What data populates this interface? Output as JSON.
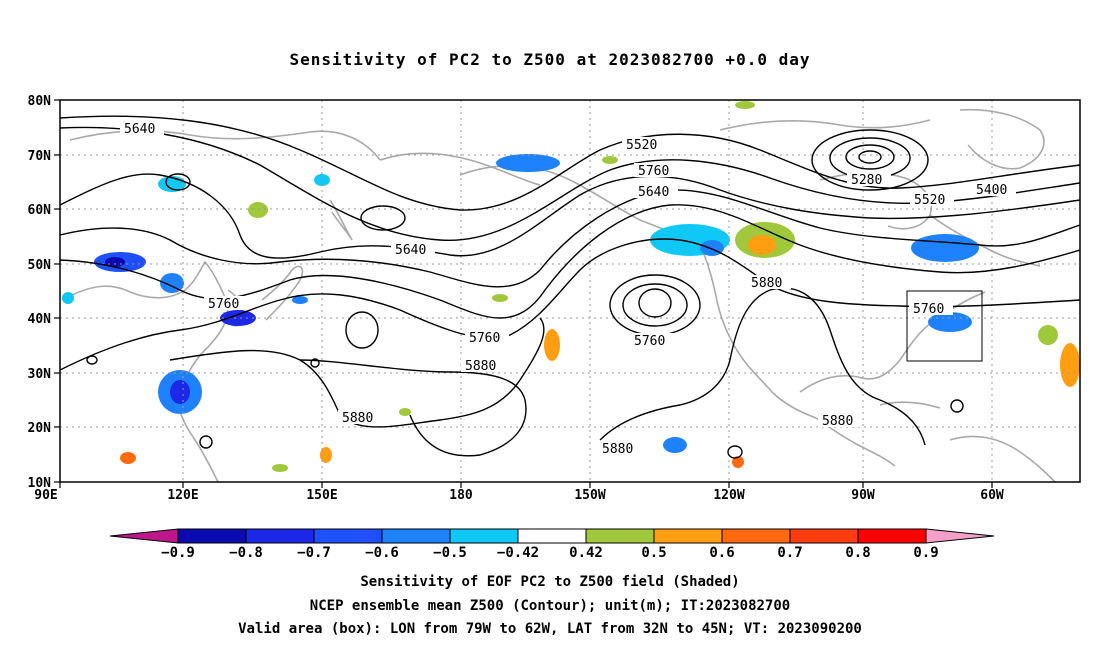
{
  "title": "Sensitivity of PC2 to Z500 at 2023082700 +0.0 day",
  "map": {
    "lat_labels": [
      "80N",
      "70N",
      "60N",
      "50N",
      "40N",
      "30N",
      "20N",
      "10N"
    ],
    "lon_labels": [
      "90E",
      "120E",
      "150E",
      "180",
      "150W",
      "120W",
      "90W",
      "60W"
    ],
    "lon_range_deg_east": [
      90,
      310
    ],
    "lat_range_deg": [
      10,
      80
    ],
    "grid": "dotted",
    "projection": "cylindrical",
    "contour_labels": [
      "5640",
      "5520",
      "5640",
      "5760",
      "5280",
      "5400",
      "5520",
      "5640",
      "5760",
      "5880",
      "5760",
      "5760",
      "5880",
      "5880",
      "5880",
      "5880",
      "5760"
    ],
    "valid_area_box": {
      "lon": [
        -79,
        -62
      ],
      "lat": [
        32,
        45
      ]
    }
  },
  "colorbar": {
    "tick_labels": [
      "−0.9",
      "−0.8",
      "−0.7",
      "−0.6",
      "−0.5",
      "−0.42",
      "0.42",
      "0.5",
      "0.6",
      "0.7",
      "0.8",
      "0.9"
    ],
    "colors": {
      "lower_extend": "#c0168c",
      "segments": [
        "#0a0ab0",
        "#1c28e8",
        "#1f50ff",
        "#1e82ff",
        "#10c8f5",
        "#ffffff",
        "#a0c83c",
        "#ff9e10",
        "#ff6a10",
        "#ff3c10",
        "#ff0000"
      ],
      "upper_extend": "#f5a0c8"
    }
  },
  "captions": [
    "Sensitivity of EOF PC2 to Z500 field (Shaded)",
    "NCEP ensemble mean Z500 (Contour); unit(m); IT:2023082700",
    "Valid area (box): LON from 79W to 62W, LAT from 32N to 45N; VT: 2023090200"
  ]
}
